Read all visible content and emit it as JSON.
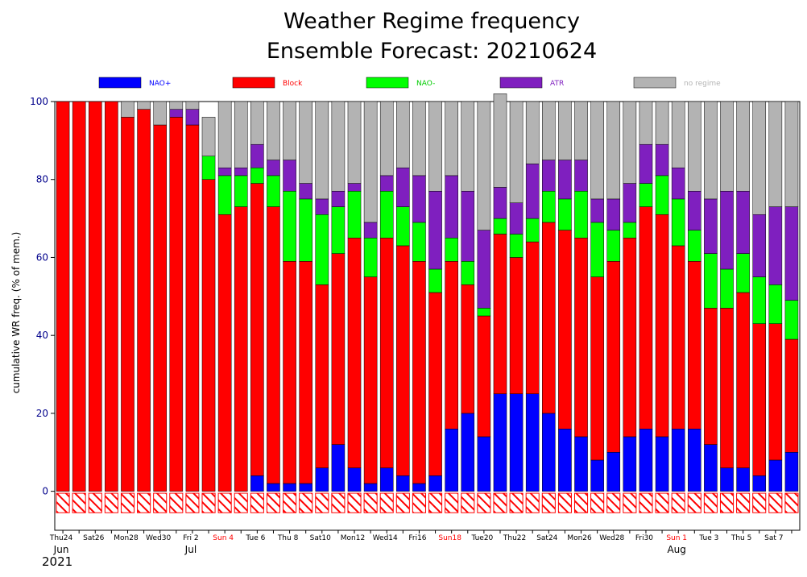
{
  "chart_data": {
    "type": "bar",
    "stacked": true,
    "title_line1": "Weather Regime frequency",
    "title_line2": "Ensemble Forecast: 20210624",
    "ylabel": "cumulative WR freq. (% of mem.)",
    "xlabel": "",
    "ylim": [
      -10,
      100
    ],
    "yticks": [
      0,
      20,
      40,
      60,
      80,
      100
    ],
    "grid": false,
    "legend_position": "top",
    "x": [
      "2021-06-24",
      "2021-06-25",
      "2021-06-26",
      "2021-06-27",
      "2021-06-28",
      "2021-06-29",
      "2021-06-30",
      "2021-07-01",
      "2021-07-02",
      "2021-07-03",
      "2021-07-04",
      "2021-07-05",
      "2021-07-06",
      "2021-07-07",
      "2021-07-08",
      "2021-07-09",
      "2021-07-10",
      "2021-07-11",
      "2021-07-12",
      "2021-07-13",
      "2021-07-14",
      "2021-07-15",
      "2021-07-16",
      "2021-07-17",
      "2021-07-18",
      "2021-07-19",
      "2021-07-20",
      "2021-07-21",
      "2021-07-22",
      "2021-07-23",
      "2021-07-24",
      "2021-07-25",
      "2021-07-26",
      "2021-07-27",
      "2021-07-28",
      "2021-07-29",
      "2021-07-30",
      "2021-07-31",
      "2021-08-01",
      "2021-08-02",
      "2021-08-03",
      "2021-08-04",
      "2021-08-05",
      "2021-08-06",
      "2021-08-07",
      "2021-08-08"
    ],
    "tick_labels": [
      {
        "index": 0,
        "label": "Thu24",
        "red": false
      },
      {
        "index": 2,
        "label": "Sat26",
        "red": false
      },
      {
        "index": 4,
        "label": "Mon28",
        "red": false
      },
      {
        "index": 6,
        "label": "Wed30",
        "red": false
      },
      {
        "index": 8,
        "label": "Fri 2",
        "red": false
      },
      {
        "index": 10,
        "label": "Sun 4",
        "red": true
      },
      {
        "index": 12,
        "label": "Tue 6",
        "red": false
      },
      {
        "index": 14,
        "label": "Thu 8",
        "red": false
      },
      {
        "index": 16,
        "label": "Sat10",
        "red": false
      },
      {
        "index": 18,
        "label": "Mon12",
        "red": false
      },
      {
        "index": 20,
        "label": "Wed14",
        "red": false
      },
      {
        "index": 22,
        "label": "Fri16",
        "red": false
      },
      {
        "index": 24,
        "label": "Sun18",
        "red": true
      },
      {
        "index": 26,
        "label": "Tue20",
        "red": false
      },
      {
        "index": 28,
        "label": "Thu22",
        "red": false
      },
      {
        "index": 30,
        "label": "Sat24",
        "red": false
      },
      {
        "index": 32,
        "label": "Mon26",
        "red": false
      },
      {
        "index": 34,
        "label": "Wed28",
        "red": false
      },
      {
        "index": 36,
        "label": "Fri30",
        "red": false
      },
      {
        "index": 38,
        "label": "Sun 1",
        "red": true
      },
      {
        "index": 40,
        "label": "Tue 3",
        "red": false
      },
      {
        "index": 42,
        "label": "Thu 5",
        "red": false
      },
      {
        "index": 44,
        "label": "Sat 7",
        "red": false
      }
    ],
    "month_labels": [
      {
        "index": 0,
        "label": "Jun"
      },
      {
        "index": 8,
        "label": "Jul"
      },
      {
        "index": 38,
        "label": "Aug"
      }
    ],
    "year_label": "2021",
    "series": [
      {
        "name": "NAO+",
        "color": "#0000ff",
        "values": [
          0,
          0,
          0,
          0,
          0,
          0,
          0,
          0,
          0,
          0,
          0,
          0,
          4,
          2,
          2,
          2,
          6,
          12,
          6,
          2,
          6,
          4,
          2,
          4,
          16,
          20,
          14,
          25,
          25,
          25,
          20,
          16,
          14,
          8,
          10,
          14,
          16,
          14,
          16,
          16,
          12,
          6,
          6,
          4,
          8,
          10
        ]
      },
      {
        "name": "Block",
        "color": "#ff0000",
        "values": [
          100,
          100,
          100,
          100,
          96,
          98,
          94,
          96,
          94,
          80,
          71,
          73,
          75,
          71,
          57,
          57,
          47,
          49,
          59,
          53,
          59,
          59,
          57,
          47,
          43,
          33,
          31,
          41,
          35,
          39,
          49,
          51,
          51,
          47,
          49,
          51,
          57,
          57,
          47,
          43,
          35,
          41,
          45,
          39,
          35,
          29
        ]
      },
      {
        "name": "NAO-",
        "color": "#00ff00",
        "values": [
          0,
          0,
          0,
          0,
          0,
          0,
          0,
          0,
          0,
          6,
          10,
          8,
          4,
          8,
          18,
          16,
          18,
          12,
          12,
          10,
          12,
          10,
          10,
          6,
          6,
          6,
          2,
          4,
          6,
          6,
          8,
          8,
          12,
          14,
          8,
          4,
          6,
          10,
          12,
          8,
          14,
          10,
          10,
          12,
          10,
          10
        ]
      },
      {
        "name": "ATR",
        "color": "#7f1fbf",
        "values": [
          0,
          0,
          0,
          0,
          0,
          0,
          0,
          2,
          4,
          0,
          2,
          2,
          6,
          4,
          8,
          4,
          4,
          4,
          2,
          4,
          4,
          10,
          12,
          20,
          16,
          18,
          20,
          8,
          8,
          14,
          8,
          10,
          8,
          6,
          8,
          10,
          10,
          8,
          8,
          10,
          14,
          20,
          16,
          16,
          20,
          24
        ]
      },
      {
        "name": "no regime",
        "color": "#b3b3b3",
        "values": [
          0,
          0,
          0,
          0,
          4,
          2,
          6,
          2,
          2,
          10,
          17,
          17,
          11,
          15,
          15,
          21,
          25,
          23,
          21,
          31,
          19,
          17,
          19,
          23,
          19,
          23,
          33,
          24,
          26,
          16,
          15,
          15,
          15,
          25,
          25,
          21,
          11,
          11,
          17,
          23,
          25,
          23,
          23,
          29,
          27,
          27
        ]
      }
    ]
  }
}
